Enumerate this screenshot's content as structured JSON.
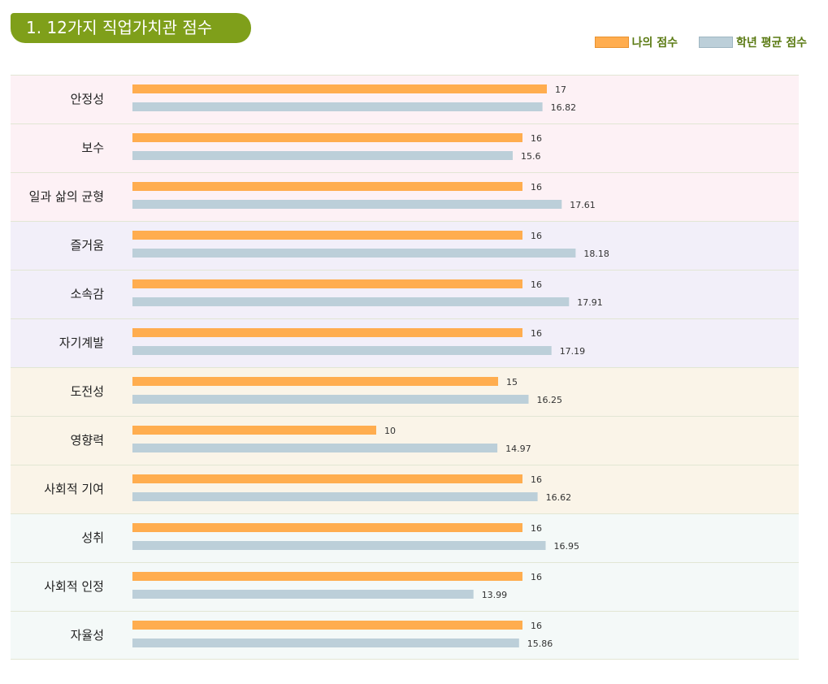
{
  "title": "1. 12가지 직업가치관 점수",
  "legend": {
    "mine_label": "나의 점수",
    "avg_label": "학년 평균 점수"
  },
  "colors": {
    "mine": "#ffad4f",
    "avg": "#bccfd9",
    "title_bg": "#7f9f1a",
    "legend_text": "#5a7a12",
    "group_bgs": [
      "#fdf1f5",
      "#f2eff9",
      "#faf4e8",
      "#f4f9f8"
    ]
  },
  "chart_data": {
    "type": "bar",
    "orientation": "horizontal",
    "categories": [
      "안정성",
      "보수",
      "일과 삶의 균형",
      "즐거움",
      "소속감",
      "자기계발",
      "도전성",
      "영향력",
      "사회적 기여",
      "성취",
      "사회적 인정",
      "자율성"
    ],
    "groups": [
      0,
      0,
      0,
      1,
      1,
      1,
      2,
      2,
      2,
      3,
      3,
      3
    ],
    "series": [
      {
        "name": "나의 점수",
        "values": [
          17,
          16,
          16,
          16,
          16,
          16,
          15,
          10,
          16,
          16,
          16,
          16
        ],
        "labels": [
          "17",
          "16",
          "16",
          "16",
          "16",
          "16",
          "15",
          "10",
          "16",
          "16",
          "16",
          "16"
        ]
      },
      {
        "name": "학년 평균 점수",
        "values": [
          16.82,
          15.6,
          17.61,
          18.18,
          17.91,
          17.19,
          16.25,
          14.97,
          16.62,
          16.95,
          13.99,
          15.86
        ],
        "labels": [
          "16.82",
          "15.6",
          "17.61",
          "18.18",
          "17.91",
          "17.19",
          "16.25",
          "14.97",
          "16.62",
          "16.95",
          "13.99",
          "15.86"
        ]
      }
    ],
    "xlim": [
      0,
      20
    ]
  }
}
